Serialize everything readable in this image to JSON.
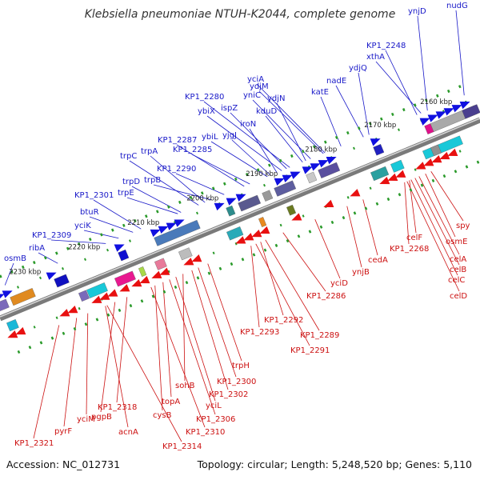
{
  "title": "Klebsiella pneumoniae NTUH-K2044, complete genome",
  "footer": {
    "accession": "Accession: NC_012731",
    "topology": "Topology: circular; Length: 5,248,520 bp; Genes: 5,110"
  },
  "colors": {
    "forward_gene": "#1010e0",
    "reverse_gene": "#e81010",
    "backbone": "#888888",
    "tick": "#2a9a2a"
  },
  "scale_labels": [
    "2160 kbp",
    "2170 kbp",
    "2180 kbp",
    "2190 kbp",
    "2200 kbp",
    "2210 kbp",
    "2220 kbp",
    "2230 kbp"
  ],
  "forward_labels": [
    "ynjD",
    "nudG",
    "KP1_2248",
    "xthA",
    "ydjQ",
    "nadE",
    "katE",
    "yciA",
    "ydjM",
    "KP1_2280",
    "yniC",
    "ydjN",
    "ybiX",
    "ispZ",
    "kduD",
    "ybiL",
    "yjgJ",
    "iroN",
    "KP1_2287",
    "KP1_2285",
    "trpC",
    "trpA",
    "KP1_2290",
    "trpB",
    "trpD",
    "trpE",
    "KP1_2301",
    "btuR",
    "yciK",
    "KP1_2309",
    "ribA",
    "osmB"
  ],
  "reverse_labels": [
    "spy",
    "osmE",
    "celF",
    "KP1_2268",
    "celA",
    "celB",
    "celC",
    "celD",
    "cedA",
    "ynjB",
    "yciD",
    "KP1_2286",
    "KP1_2292",
    "KP1_2289",
    "KP1_2293",
    "KP1_2291",
    "trpH",
    "KP1_2300",
    "sohB",
    "KP1_2302",
    "yciL",
    "topA",
    "KP1_2306",
    "cysB",
    "KP1_2310",
    "KP1_2318",
    "pgpB",
    "acnA",
    "yciM",
    "pyrF",
    "KP1_2314",
    "KP1_2321"
  ]
}
